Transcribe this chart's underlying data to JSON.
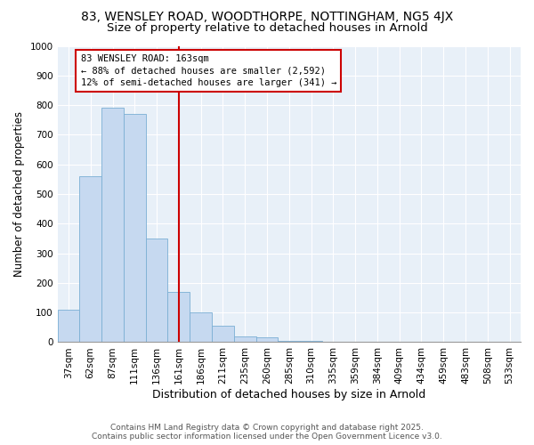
{
  "title1": "83, WENSLEY ROAD, WOODTHORPE, NOTTINGHAM, NG5 4JX",
  "title2": "Size of property relative to detached houses in Arnold",
  "xlabel": "Distribution of detached houses by size in Arnold",
  "ylabel": "Number of detached properties",
  "categories": [
    "37sqm",
    "62sqm",
    "87sqm",
    "111sqm",
    "136sqm",
    "161sqm",
    "186sqm",
    "211sqm",
    "235sqm",
    "260sqm",
    "285sqm",
    "310sqm",
    "335sqm",
    "359sqm",
    "384sqm",
    "409sqm",
    "434sqm",
    "459sqm",
    "483sqm",
    "508sqm",
    "533sqm"
  ],
  "values": [
    110,
    560,
    790,
    770,
    350,
    170,
    100,
    55,
    20,
    15,
    5,
    5,
    0,
    0,
    0,
    0,
    0,
    0,
    0,
    0,
    0
  ],
  "bar_color": "#c6d9f0",
  "bar_edge_color": "#7bafd4",
  "vline_x_index": 5,
  "vline_color": "#cc0000",
  "annotation_line1": "83 WENSLEY ROAD: 163sqm",
  "annotation_line2": "← 88% of detached houses are smaller (2,592)",
  "annotation_line3": "12% of semi-detached houses are larger (341) →",
  "annotation_box_color": "#cc0000",
  "ylim": [
    0,
    1000
  ],
  "yticks": [
    0,
    100,
    200,
    300,
    400,
    500,
    600,
    700,
    800,
    900,
    1000
  ],
  "background_color": "#e8f0f8",
  "footer1": "Contains HM Land Registry data © Crown copyright and database right 2025.",
  "footer2": "Contains public sector information licensed under the Open Government Licence v3.0.",
  "title1_fontsize": 10,
  "title2_fontsize": 9.5,
  "xlabel_fontsize": 9,
  "ylabel_fontsize": 8.5,
  "tick_fontsize": 7.5,
  "annotation_fontsize": 7.5,
  "footer_fontsize": 6.5
}
